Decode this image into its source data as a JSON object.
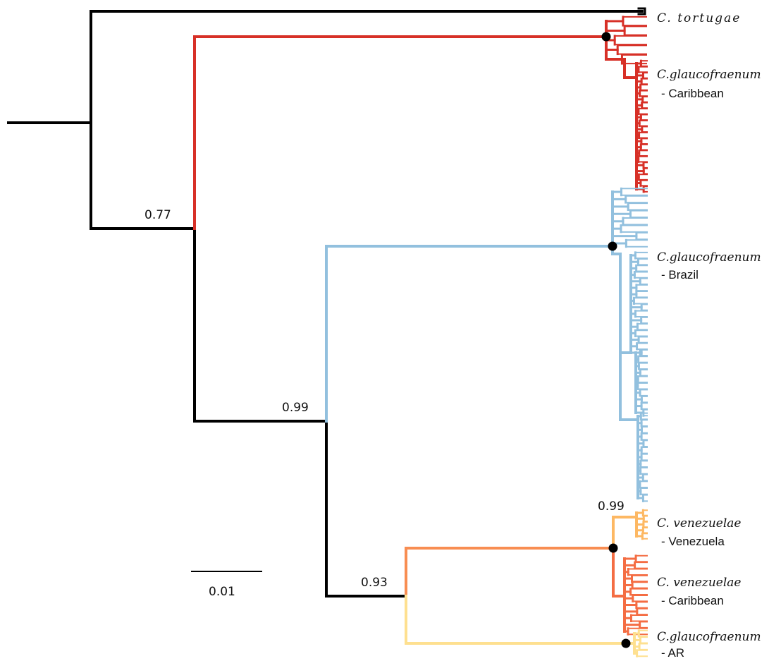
{
  "colors": {
    "outgroup": "#000000",
    "caribbean": "#d73027",
    "brazil": "#92c0de",
    "ven_venezuela": "#fdb863",
    "ven_caribbean": "#f46d43",
    "ar": "#fee090",
    "ven_stem": "#f88d52"
  },
  "support_values": {
    "n077": "0.77",
    "n099a": "0.99",
    "n093": "0.93",
    "n099b": "0.99"
  },
  "scale_bar": {
    "label": "0.01"
  },
  "clade_labels": {
    "tortugae": {
      "species": "C. tortugae",
      "region": ""
    },
    "glauco_caribbean": {
      "species": "C.glaucofraenum",
      "region": "- Caribbean"
    },
    "glauco_brazil": {
      "species": "C.glaucofraenum",
      "region": "- Brazil"
    },
    "ven_venezuela": {
      "species": "C. venezuelae",
      "region": "- Venezuela"
    },
    "ven_caribbean": {
      "species": "C. venezuelae",
      "region": "- Caribbean"
    },
    "glauco_ar": {
      "species": "C.glaucofraenum",
      "region": "- AR"
    }
  }
}
